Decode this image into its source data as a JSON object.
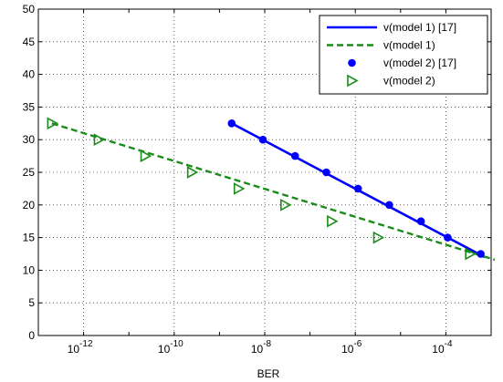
{
  "chart_data": {
    "type": "line",
    "title": "",
    "xlabel": "BER",
    "ylabel": "",
    "xscale": "log",
    "xlim_exponent": [
      -13,
      -3
    ],
    "ylim": [
      0,
      50
    ],
    "grid": true,
    "legend_position": "top-right",
    "x_tick_labels": [
      {
        "exp": -12,
        "base": "10",
        "power": "-12"
      },
      {
        "exp": -10,
        "base": "10",
        "power": "-10"
      },
      {
        "exp": -8,
        "base": "10",
        "power": "-8"
      },
      {
        "exp": -6,
        "base": "10",
        "power": "-6"
      },
      {
        "exp": -4,
        "base": "10",
        "power": "-4"
      }
    ],
    "y_ticks": [
      0,
      5,
      10,
      15,
      20,
      25,
      30,
      35,
      40,
      45,
      50
    ],
    "series": [
      {
        "name": "v(model 1) [17]",
        "color": "#0000ff",
        "line": "solid",
        "marker": "none",
        "points": [
          {
            "x": "10^-8.73",
            "exp": -8.73,
            "y": 32.5
          },
          {
            "x": "10^-3.14",
            "exp": -3.14,
            "y": 12.0
          }
        ]
      },
      {
        "name": "v(model 1)",
        "color": "#1a8c1a",
        "line": "dashed",
        "marker": "none",
        "points": [
          {
            "x": "10^-12.70",
            "exp": -12.7,
            "y": 32.5
          },
          {
            "x": "10^-2.92",
            "exp": -2.92,
            "y": 11.6
          }
        ]
      },
      {
        "name": "v(model 2) [17]",
        "color": "#0000ff",
        "line": "none",
        "marker": "dot",
        "points": [
          {
            "x": "10^-8.73",
            "exp": -8.73,
            "y": 32.5
          },
          {
            "x": "10^-8.04",
            "exp": -8.04,
            "y": 30.0
          },
          {
            "x": "10^-7.33",
            "exp": -7.33,
            "y": 27.5
          },
          {
            "x": "10^-6.64",
            "exp": -6.64,
            "y": 25.0
          },
          {
            "x": "10^-5.94",
            "exp": -5.94,
            "y": 22.5
          },
          {
            "x": "10^-5.25",
            "exp": -5.25,
            "y": 20.0
          },
          {
            "x": "10^-4.55",
            "exp": -4.55,
            "y": 17.5
          },
          {
            "x": "10^-3.96",
            "exp": -3.96,
            "y": 15.0
          },
          {
            "x": "10^-3.23",
            "exp": -3.23,
            "y": 12.5
          }
        ]
      },
      {
        "name": "v(model 2)",
        "color": "#1a8c1a",
        "line": "none",
        "marker": "triangle-right",
        "points": [
          {
            "x": "10^-12.70",
            "exp": -12.7,
            "y": 32.5
          },
          {
            "x": "10^-11.67",
            "exp": -11.67,
            "y": 30.0
          },
          {
            "x": "10^-10.64",
            "exp": -10.64,
            "y": 27.5
          },
          {
            "x": "10^-9.61",
            "exp": -9.61,
            "y": 25.0
          },
          {
            "x": "10^-8.58",
            "exp": -8.58,
            "y": 22.5
          },
          {
            "x": "10^-7.55",
            "exp": -7.55,
            "y": 20.0
          },
          {
            "x": "10^-6.52",
            "exp": -6.52,
            "y": 17.5
          },
          {
            "x": "10^-5.50",
            "exp": -5.5,
            "y": 15.0
          },
          {
            "x": "10^-3.47",
            "exp": -3.47,
            "y": 12.5
          }
        ]
      }
    ]
  }
}
